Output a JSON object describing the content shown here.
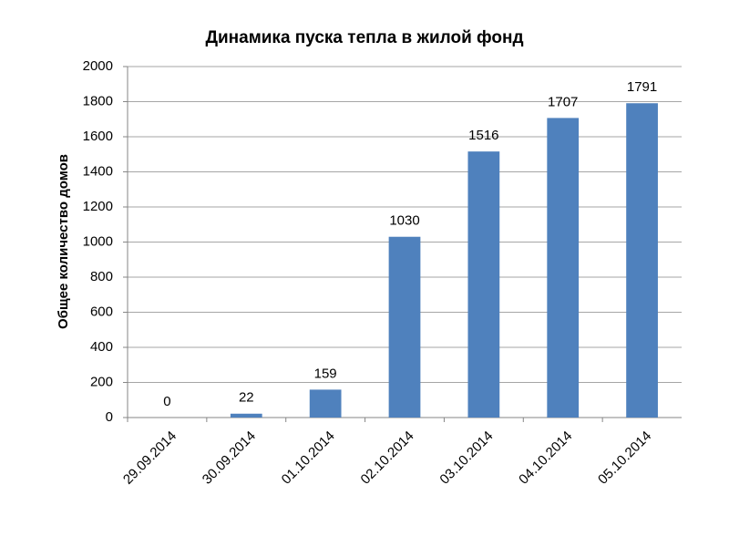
{
  "chart_data": {
    "type": "bar",
    "title": "Динамика пуска тепла в жилой фонд",
    "y_label": "Общее количество домов",
    "categories": [
      "29.09.2014",
      "30.09.2014",
      "01.10.2014",
      "02.10.2014",
      "03.10.2014",
      "04.10.2014",
      "05.10.2014"
    ],
    "values": [
      0,
      22,
      159,
      1030,
      1516,
      1707,
      1791
    ],
    "color": "#4f81bd",
    "ylim": [
      0,
      2000
    ],
    "yticks": [
      0,
      200,
      400,
      600,
      800,
      1000,
      1200,
      1400,
      1600,
      1800,
      2000
    ],
    "grid": true
  }
}
